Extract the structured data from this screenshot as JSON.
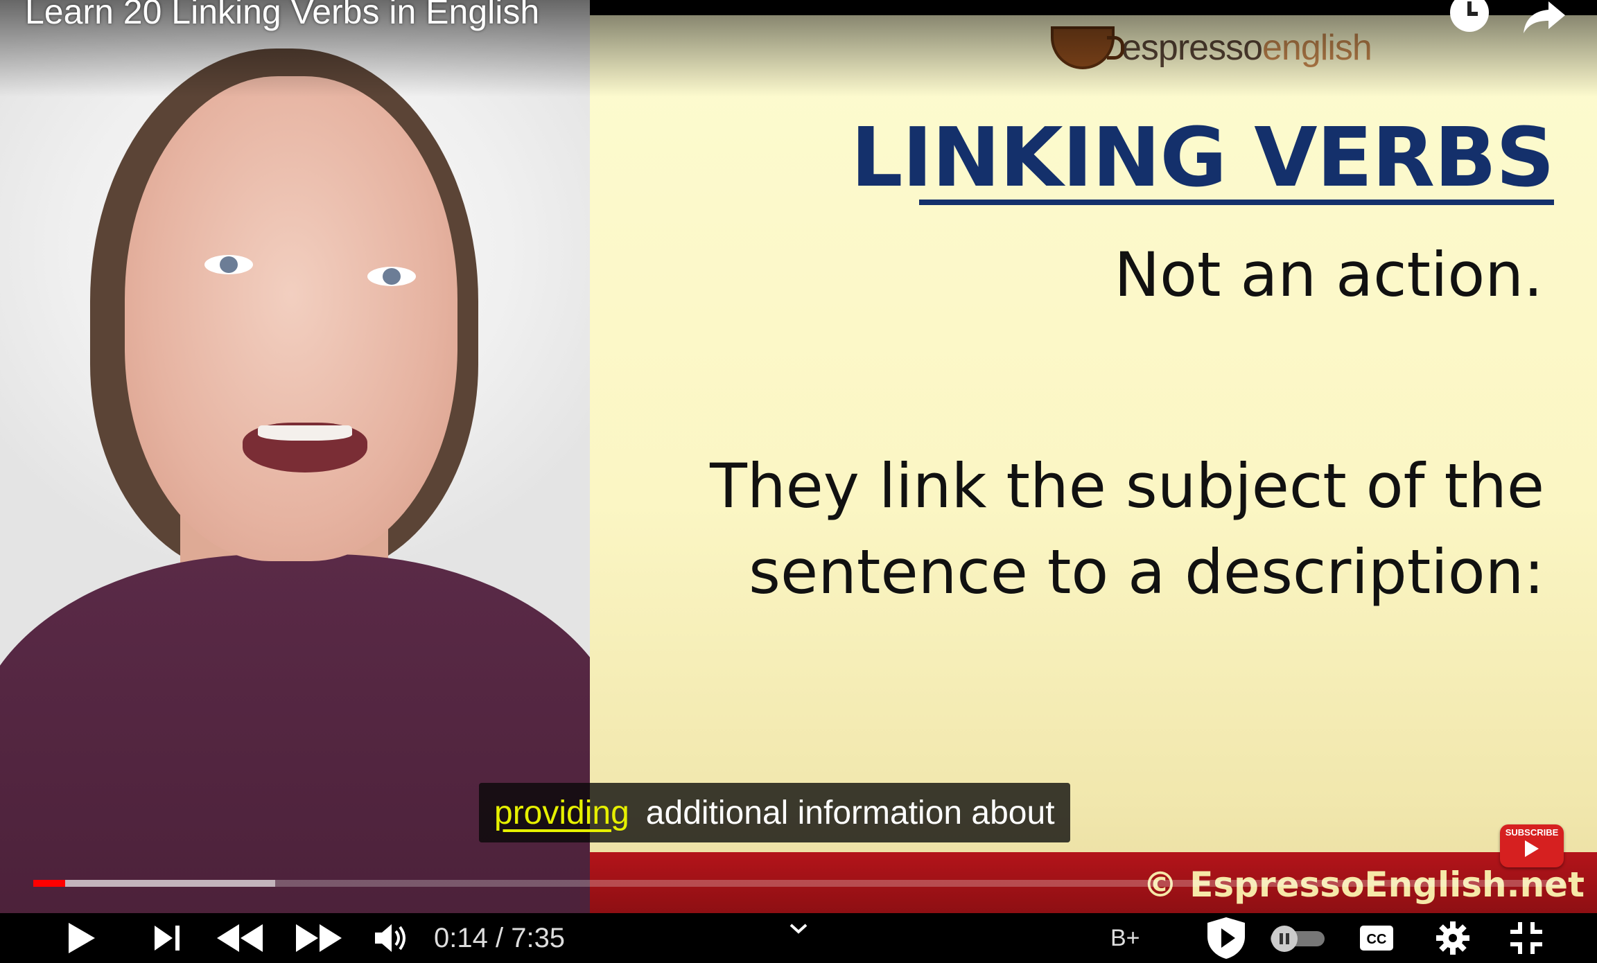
{
  "video": {
    "title": "Learn 20 Linking Verbs in English"
  },
  "slide": {
    "brand_prefix": "espresso",
    "brand_suffix": "english",
    "heading": "LINKING VERBS",
    "line1": "Not an action.",
    "line2a": "They link the subject of the",
    "line2b": "sentence to a description:",
    "copyright": "© EspressoEnglish.net",
    "subscribe_label": "SUBSCRIBE"
  },
  "caption": {
    "highlighted": "providing",
    "rest": "additional information about"
  },
  "progress": {
    "played_fraction": 0.021,
    "buffered_fraction": 0.158
  },
  "controls": {
    "current_time": "0:14",
    "separator": " / ",
    "duration": "7:35",
    "extension_label": "B+"
  },
  "colors": {
    "accent_red": "#ff0000",
    "slide_blue": "#14306b",
    "caption_highlight": "#e6f000"
  },
  "icons": [
    "clock-icon",
    "share-icon",
    "play-icon",
    "next-icon",
    "rewind-icon",
    "fast-forward-icon",
    "volume-icon",
    "chevron-down-icon",
    "shield-play-icon",
    "autoplay-toggle-icon",
    "captions-icon",
    "settings-icon",
    "exit-fullscreen-icon"
  ]
}
